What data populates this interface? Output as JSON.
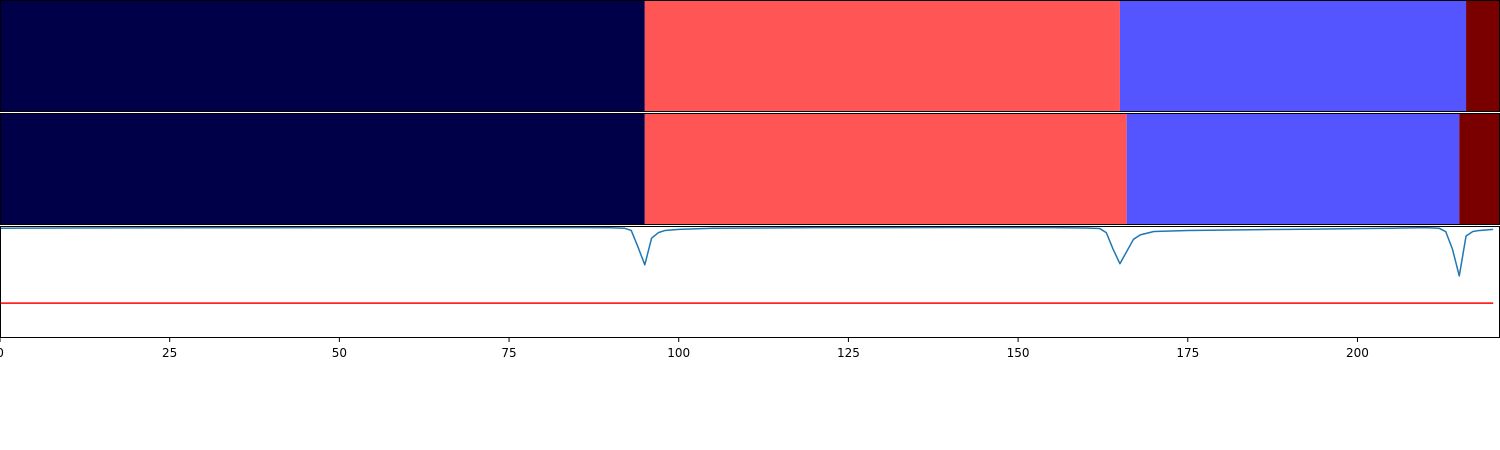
{
  "chart_data": [
    {
      "type": "heatmap",
      "title": "",
      "xlabel": "",
      "ylabel": "",
      "xlim": [
        0,
        221
      ],
      "segments": [
        {
          "start": 0,
          "end": 95,
          "color": "#000048"
        },
        {
          "start": 95,
          "end": 165,
          "color": "#ff5555"
        },
        {
          "start": 165,
          "end": 216,
          "color": "#5555ff"
        },
        {
          "start": 216,
          "end": 221,
          "color": "#7a0000"
        }
      ]
    },
    {
      "type": "heatmap",
      "title": "",
      "xlabel": "",
      "ylabel": "",
      "xlim": [
        0,
        221
      ],
      "segments": [
        {
          "start": 0,
          "end": 95,
          "color": "#000048"
        },
        {
          "start": 95,
          "end": 166,
          "color": "#ff5555"
        },
        {
          "start": 166,
          "end": 215,
          "color": "#5555ff"
        },
        {
          "start": 215,
          "end": 221,
          "color": "#7a0000"
        }
      ]
    },
    {
      "type": "line",
      "title": "",
      "xlabel": "",
      "ylabel": "",
      "xlim": [
        0,
        221
      ],
      "ylim": [
        -1,
        0.01
      ],
      "grid": false,
      "xticks": [
        0,
        25,
        50,
        75,
        100,
        125,
        150,
        175,
        200
      ],
      "xtick_labels": [
        "0",
        "25",
        "50",
        "75",
        "100",
        "125",
        "150",
        "175",
        "200"
      ],
      "series": [
        {
          "color": "#1f77b4",
          "x": [
            0,
            10,
            30,
            60,
            85,
            90,
            92,
            93,
            94,
            95,
            96,
            97,
            98,
            100,
            105,
            120,
            140,
            155,
            160,
            162,
            163,
            164,
            165,
            166,
            167,
            168,
            170,
            175,
            190,
            205,
            210,
            212,
            213,
            214,
            215,
            216,
            217,
            218,
            220
          ],
          "y": [
            -0.01,
            -0.008,
            -0.006,
            -0.005,
            -0.005,
            -0.006,
            -0.01,
            -0.03,
            -0.18,
            -0.34,
            -0.1,
            -0.05,
            -0.03,
            -0.02,
            -0.01,
            -0.005,
            -0.004,
            -0.005,
            -0.008,
            -0.012,
            -0.05,
            -0.2,
            -0.33,
            -0.22,
            -0.11,
            -0.07,
            -0.04,
            -0.03,
            -0.02,
            -0.01,
            -0.005,
            -0.01,
            -0.04,
            -0.2,
            -0.44,
            -0.08,
            -0.04,
            -0.03,
            -0.02
          ]
        },
        {
          "color": "#ff0000",
          "x": [
            0,
            220
          ],
          "y": [
            -0.685,
            -0.685
          ]
        }
      ]
    }
  ]
}
